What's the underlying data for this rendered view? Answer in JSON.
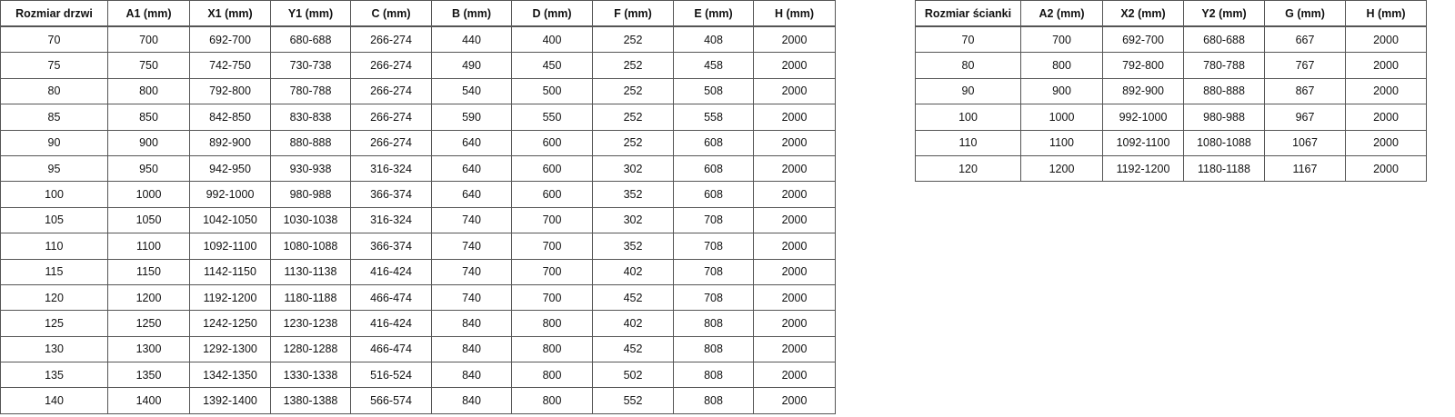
{
  "doors_table": {
    "headers": [
      "Rozmiar drzwi",
      "A1 (mm)",
      "X1 (mm)",
      "Y1 (mm)",
      "C (mm)",
      "B (mm)",
      "D (mm)",
      "F (mm)",
      "E (mm)",
      "H (mm)"
    ],
    "rows": [
      [
        "70",
        "700",
        "692-700",
        "680-688",
        "266-274",
        "440",
        "400",
        "252",
        "408",
        "2000"
      ],
      [
        "75",
        "750",
        "742-750",
        "730-738",
        "266-274",
        "490",
        "450",
        "252",
        "458",
        "2000"
      ],
      [
        "80",
        "800",
        "792-800",
        "780-788",
        "266-274",
        "540",
        "500",
        "252",
        "508",
        "2000"
      ],
      [
        "85",
        "850",
        "842-850",
        "830-838",
        "266-274",
        "590",
        "550",
        "252",
        "558",
        "2000"
      ],
      [
        "90",
        "900",
        "892-900",
        "880-888",
        "266-274",
        "640",
        "600",
        "252",
        "608",
        "2000"
      ],
      [
        "95",
        "950",
        "942-950",
        "930-938",
        "316-324",
        "640",
        "600",
        "302",
        "608",
        "2000"
      ],
      [
        "100",
        "1000",
        "992-1000",
        "980-988",
        "366-374",
        "640",
        "600",
        "352",
        "608",
        "2000"
      ],
      [
        "105",
        "1050",
        "1042-1050",
        "1030-1038",
        "316-324",
        "740",
        "700",
        "302",
        "708",
        "2000"
      ],
      [
        "110",
        "1100",
        "1092-1100",
        "1080-1088",
        "366-374",
        "740",
        "700",
        "352",
        "708",
        "2000"
      ],
      [
        "115",
        "1150",
        "1142-1150",
        "1130-1138",
        "416-424",
        "740",
        "700",
        "402",
        "708",
        "2000"
      ],
      [
        "120",
        "1200",
        "1192-1200",
        "1180-1188",
        "466-474",
        "740",
        "700",
        "452",
        "708",
        "2000"
      ],
      [
        "125",
        "1250",
        "1242-1250",
        "1230-1238",
        "416-424",
        "840",
        "800",
        "402",
        "808",
        "2000"
      ],
      [
        "130",
        "1300",
        "1292-1300",
        "1280-1288",
        "466-474",
        "840",
        "800",
        "452",
        "808",
        "2000"
      ],
      [
        "135",
        "1350",
        "1342-1350",
        "1330-1338",
        "516-524",
        "840",
        "800",
        "502",
        "808",
        "2000"
      ],
      [
        "140",
        "1400",
        "1392-1400",
        "1380-1388",
        "566-574",
        "840",
        "800",
        "552",
        "808",
        "2000"
      ]
    ]
  },
  "panels_table": {
    "headers": [
      "Rozmiar ścianki",
      "A2 (mm)",
      "X2 (mm)",
      "Y2 (mm)",
      "G (mm)",
      "H (mm)"
    ],
    "rows": [
      [
        "70",
        "700",
        "692-700",
        "680-688",
        "667",
        "2000"
      ],
      [
        "80",
        "800",
        "792-800",
        "780-788",
        "767",
        "2000"
      ],
      [
        "90",
        "900",
        "892-900",
        "880-888",
        "867",
        "2000"
      ],
      [
        "100",
        "1000",
        "992-1000",
        "980-988",
        "967",
        "2000"
      ],
      [
        "110",
        "1100",
        "1092-1100",
        "1080-1088",
        "1067",
        "2000"
      ],
      [
        "120",
        "1200",
        "1192-1200",
        "1180-1188",
        "1167",
        "2000"
      ]
    ]
  }
}
